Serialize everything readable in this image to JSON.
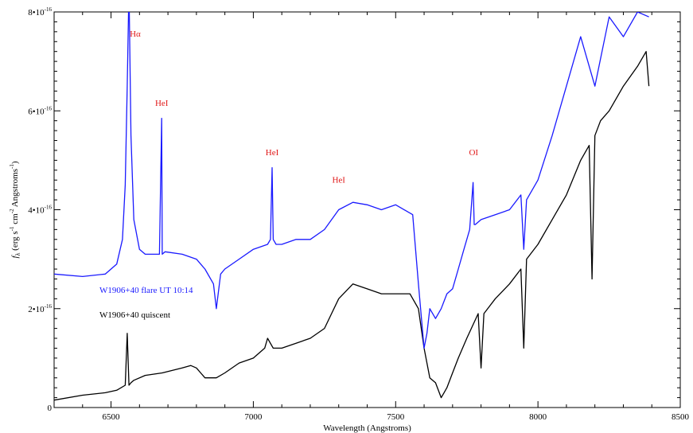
{
  "chart_data": {
    "type": "line",
    "title": "",
    "xlabel": "Wavelength (Angstroms)",
    "ylabel_parts": [
      "f",
      "λ",
      " (erg s",
      "-1",
      " cm",
      "-2",
      " Angstroms",
      "-1",
      ")"
    ],
    "xlim": [
      6300,
      8500
    ],
    "ylim": [
      0,
      8e-16
    ],
    "x_ticks": [
      6500,
      7000,
      7500,
      8000,
      8500
    ],
    "y_ticks": [
      {
        "value": 0,
        "label": "0"
      },
      {
        "value": 2e-16,
        "label": "2•10",
        "exp": "-16"
      },
      {
        "value": 4e-16,
        "label": "4•10",
        "exp": "-16"
      },
      {
        "value": 6e-16,
        "label": "6•10",
        "exp": "-16"
      },
      {
        "value": 8e-16,
        "label": "8•10",
        "exp": "-16"
      }
    ],
    "grid": false,
    "legend_position": "left-middle",
    "series": [
      {
        "name": "W1906+40 flare UT 10:14",
        "color": "#1a1aff",
        "x": [
          6300,
          6400,
          6480,
          6520,
          6540,
          6550,
          6557,
          6563,
          6570,
          6580,
          6600,
          6620,
          6650,
          6670,
          6678,
          6680,
          6690,
          6750,
          6800,
          6830,
          6860,
          6870,
          6885,
          6900,
          6950,
          7000,
          7050,
          7060,
          7066,
          7070,
          7080,
          7100,
          7150,
          7200,
          7250,
          7300,
          7350,
          7400,
          7450,
          7500,
          7560,
          7580,
          7600,
          7610,
          7620,
          7640,
          7660,
          7680,
          7700,
          7720,
          7740,
          7760,
          7772,
          7776,
          7780,
          7800,
          7850,
          7900,
          7940,
          7950,
          7960,
          8000,
          8050,
          8100,
          8150,
          8200,
          8250,
          8300,
          8350,
          8390
        ],
        "y": [
          2.7e-16,
          2.65e-16,
          2.7e-16,
          2.9e-16,
          3.4e-16,
          4.5e-16,
          6.5e-16,
          8.5e-16,
          5.5e-16,
          3.8e-16,
          3.2e-16,
          3.1e-16,
          3.1e-16,
          3.1e-16,
          5.85e-16,
          3.1e-16,
          3.15e-16,
          3.1e-16,
          3e-16,
          2.8e-16,
          2.5e-16,
          2e-16,
          2.7e-16,
          2.8e-16,
          3e-16,
          3.2e-16,
          3.3e-16,
          3.4e-16,
          4.85e-16,
          3.4e-16,
          3.3e-16,
          3.3e-16,
          3.4e-16,
          3.4e-16,
          3.6e-16,
          4e-16,
          4.15e-16,
          4.1e-16,
          4e-16,
          4.1e-16,
          3.9e-16,
          2.5e-16,
          1.2e-16,
          1.5e-16,
          2e-16,
          1.8e-16,
          2e-16,
          2.3e-16,
          2.4e-16,
          2.8e-16,
          3.2e-16,
          3.6e-16,
          4.55e-16,
          3.7e-16,
          3.7e-16,
          3.8e-16,
          3.9e-16,
          4e-16,
          4.3e-16,
          3.2e-16,
          4.2e-16,
          4.6e-16,
          5.5e-16,
          6.5e-16,
          7.5e-16,
          6.5e-16,
          7.9e-16,
          7.5e-16,
          8e-16,
          7.9e-16
        ]
      },
      {
        "name": "W1906+40 quiscent",
        "color": "#000000",
        "x": [
          6300,
          6400,
          6480,
          6520,
          6550,
          6557,
          6563,
          6570,
          6580,
          6620,
          6680,
          6750,
          6780,
          6800,
          6830,
          6870,
          6900,
          6950,
          7000,
          7040,
          7050,
          7070,
          7100,
          7150,
          7200,
          7250,
          7300,
          7350,
          7400,
          7450,
          7500,
          7550,
          7580,
          7600,
          7620,
          7640,
          7660,
          7670,
          7680,
          7700,
          7720,
          7750,
          7790,
          7800,
          7810,
          7850,
          7900,
          7940,
          7950,
          7960,
          8000,
          8050,
          8100,
          8150,
          8180,
          8190,
          8200,
          8220,
          8250,
          8300,
          8350,
          8380,
          8390
        ],
        "y": [
          1.5e-17,
          2.5e-17,
          3e-17,
          3.5e-17,
          4.5e-17,
          1.5e-16,
          4.5e-17,
          5e-17,
          5.5e-17,
          6.5e-17,
          7e-17,
          8e-17,
          8.5e-17,
          8e-17,
          6e-17,
          6e-17,
          7e-17,
          9e-17,
          1e-16,
          1.2e-16,
          1.4e-16,
          1.2e-16,
          1.2e-16,
          1.3e-16,
          1.4e-16,
          1.6e-16,
          2.2e-16,
          2.5e-16,
          2.4e-16,
          2.3e-16,
          2.3e-16,
          2.3e-16,
          2e-16,
          1.2e-16,
          6e-17,
          5e-17,
          2e-17,
          3e-17,
          4e-17,
          7e-17,
          1e-16,
          1.4e-16,
          1.9e-16,
          8e-17,
          1.9e-16,
          2.2e-16,
          2.5e-16,
          2.8e-16,
          1.2e-16,
          3e-16,
          3.3e-16,
          3.8e-16,
          4.3e-16,
          5e-16,
          5.3e-16,
          2.6e-16,
          5.5e-16,
          5.8e-16,
          6e-16,
          6.5e-16,
          6.9e-16,
          7.2e-16,
          6.5e-16
        ]
      }
    ],
    "annotations": [
      {
        "text": "Hα",
        "x": 6585,
        "y": 7.5e-16
      },
      {
        "text": "HeI",
        "x": 6678,
        "y": 6.1e-16
      },
      {
        "text": "HeI",
        "x": 7066,
        "y": 5.1e-16
      },
      {
        "text": "HeI",
        "x": 7300,
        "y": 4.55e-16
      },
      {
        "text": "OI",
        "x": 7774,
        "y": 5.1e-16
      }
    ]
  }
}
